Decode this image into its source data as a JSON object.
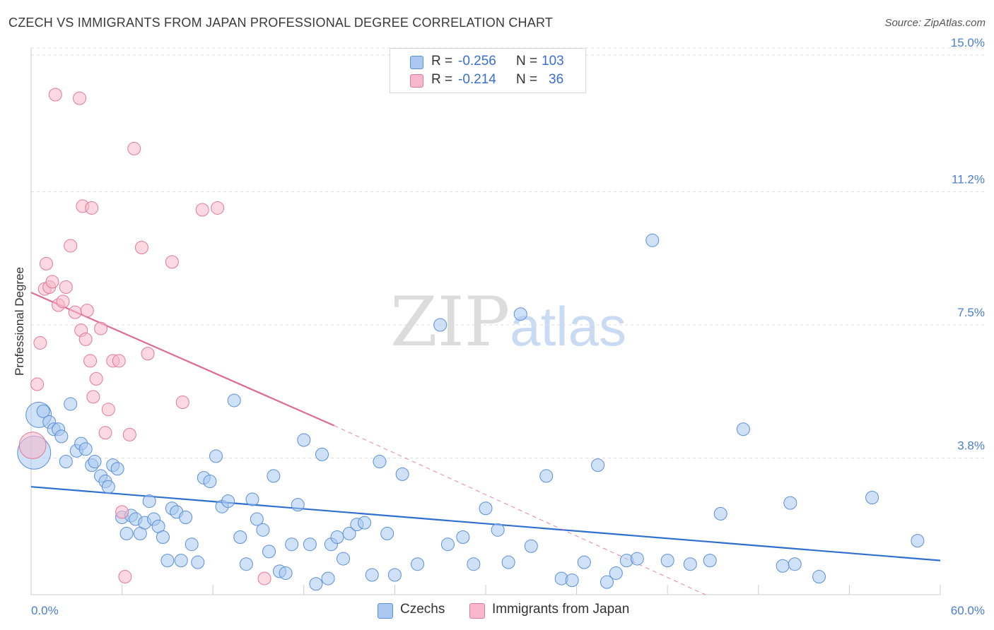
{
  "header": {
    "title": "CZECH VS IMMIGRANTS FROM JAPAN PROFESSIONAL DEGREE CORRELATION CHART",
    "source": "Source: ZipAtlas.com"
  },
  "watermark": {
    "zip": "ZIP",
    "atlas": "atlas"
  },
  "legend": {
    "series1": {
      "r_label": "R = ",
      "r_value": "-0.256",
      "n_label": "N = ",
      "n_value": "103",
      "color": "#a8c8f0"
    },
    "series2": {
      "r_label": "R = ",
      "r_value": "-0.214",
      "n_label": "N = ",
      "n_value": "36",
      "color": "#f7b8cb"
    }
  },
  "bottom_legend": {
    "czechs": "Czechs",
    "japan": "Immigrants from Japan"
  },
  "chart_data": {
    "type": "scatter",
    "title": "CZECH VS IMMIGRANTS FROM JAPAN PROFESSIONAL DEGREE CORRELATION CHART",
    "xlabel": "",
    "ylabel": "Professional Degree",
    "xlim": [
      0,
      60
    ],
    "ylim": [
      0,
      15
    ],
    "x_tick_labels": [
      "0.0%",
      "60.0%"
    ],
    "y_ticks": [
      {
        "value": 3.8,
        "label": "3.8%"
      },
      {
        "value": 7.5,
        "label": "7.5%"
      },
      {
        "value": 11.2,
        "label": "11.2%"
      },
      {
        "value": 15.0,
        "label": "15.0%"
      }
    ],
    "grid": true,
    "series": [
      {
        "name": "Czechs",
        "color": "#a8c8f0",
        "stroke": "#5b8fd6",
        "line_color": "#2f6fd0",
        "trend": {
          "x0": 0,
          "y0": 3.0,
          "x1": 60,
          "y1": 0.95
        },
        "points": [
          [
            0.2,
            3.95,
            2.6
          ],
          [
            0.5,
            5.0,
            2
          ],
          [
            0.8,
            5.1,
            1
          ],
          [
            1.2,
            4.8,
            1
          ],
          [
            1.5,
            4.6,
            1
          ],
          [
            1.8,
            4.6,
            1
          ],
          [
            2.0,
            4.4,
            1
          ],
          [
            2.3,
            3.7,
            1
          ],
          [
            2.6,
            5.3,
            1
          ],
          [
            3.0,
            4.0,
            1
          ],
          [
            3.3,
            4.2,
            1
          ],
          [
            3.6,
            4.05,
            1
          ],
          [
            4.0,
            3.6,
            1
          ],
          [
            4.2,
            3.7,
            1
          ],
          [
            4.6,
            3.3,
            1
          ],
          [
            4.9,
            3.15,
            1
          ],
          [
            5.1,
            3.0,
            1
          ],
          [
            5.4,
            3.6,
            1
          ],
          [
            5.7,
            3.5,
            1
          ],
          [
            6.0,
            2.15,
            1
          ],
          [
            6.3,
            1.7,
            1
          ],
          [
            6.6,
            2.2,
            1
          ],
          [
            6.9,
            2.1,
            1
          ],
          [
            7.2,
            1.7,
            1
          ],
          [
            7.5,
            2.0,
            1
          ],
          [
            7.8,
            2.6,
            1
          ],
          [
            8.1,
            2.1,
            1
          ],
          [
            8.4,
            1.9,
            1
          ],
          [
            8.7,
            1.6,
            1
          ],
          [
            9.0,
            0.95,
            1
          ],
          [
            9.3,
            2.4,
            1
          ],
          [
            9.6,
            2.3,
            1
          ],
          [
            9.9,
            0.95,
            1
          ],
          [
            10.2,
            2.15,
            1
          ],
          [
            10.6,
            1.4,
            1
          ],
          [
            11.0,
            0.9,
            1
          ],
          [
            11.4,
            3.25,
            1
          ],
          [
            11.8,
            3.15,
            1
          ],
          [
            12.2,
            3.85,
            1
          ],
          [
            12.6,
            2.45,
            1
          ],
          [
            13.0,
            2.6,
            1
          ],
          [
            13.4,
            5.4,
            1
          ],
          [
            13.8,
            1.6,
            1
          ],
          [
            14.2,
            0.85,
            1
          ],
          [
            14.6,
            2.65,
            1
          ],
          [
            14.9,
            2.1,
            1
          ],
          [
            15.3,
            1.8,
            1
          ],
          [
            15.7,
            1.2,
            1
          ],
          [
            16.0,
            3.3,
            1
          ],
          [
            16.4,
            0.65,
            1
          ],
          [
            16.8,
            0.6,
            1
          ],
          [
            17.2,
            1.4,
            1
          ],
          [
            17.6,
            2.5,
            1
          ],
          [
            18.0,
            4.3,
            1
          ],
          [
            18.4,
            1.4,
            1
          ],
          [
            18.8,
            0.3,
            1
          ],
          [
            19.2,
            3.9,
            1
          ],
          [
            19.6,
            0.45,
            1
          ],
          [
            19.8,
            1.4,
            1
          ],
          [
            20.2,
            1.6,
            1
          ],
          [
            20.6,
            1.0,
            1
          ],
          [
            21.0,
            1.7,
            1
          ],
          [
            21.5,
            1.95,
            1
          ],
          [
            22.0,
            2.0,
            1
          ],
          [
            22.5,
            0.55,
            1
          ],
          [
            23.0,
            3.7,
            1
          ],
          [
            23.5,
            1.7,
            1
          ],
          [
            24.0,
            0.55,
            1
          ],
          [
            24.5,
            3.35,
            1
          ],
          [
            25.5,
            0.85,
            1
          ],
          [
            27.0,
            7.5,
            1
          ],
          [
            27.5,
            1.4,
            1
          ],
          [
            28.5,
            1.6,
            1
          ],
          [
            29.2,
            0.85,
            1
          ],
          [
            30.0,
            2.4,
            1
          ],
          [
            30.8,
            1.8,
            1
          ],
          [
            31.5,
            0.9,
            1
          ],
          [
            32.3,
            7.8,
            1
          ],
          [
            33.0,
            1.35,
            1
          ],
          [
            34.0,
            3.3,
            1
          ],
          [
            35.0,
            0.45,
            1
          ],
          [
            35.7,
            0.4,
            1
          ],
          [
            36.5,
            0.9,
            1
          ],
          [
            37.4,
            3.6,
            1
          ],
          [
            38.0,
            0.35,
            1
          ],
          [
            38.6,
            0.6,
            1
          ],
          [
            39.3,
            0.95,
            1
          ],
          [
            40.0,
            1.0,
            1
          ],
          [
            41.0,
            9.85,
            1
          ],
          [
            42.0,
            0.95,
            1
          ],
          [
            43.5,
            0.85,
            1
          ],
          [
            44.8,
            0.95,
            1
          ],
          [
            45.5,
            2.25,
            1
          ],
          [
            47.0,
            4.6,
            1
          ],
          [
            49.6,
            0.8,
            1
          ],
          [
            50.1,
            2.55,
            1
          ],
          [
            50.4,
            0.85,
            1
          ],
          [
            52.0,
            0.5,
            1
          ],
          [
            55.5,
            2.7,
            1
          ],
          [
            58.5,
            1.5,
            1
          ]
        ]
      },
      {
        "name": "Immigrants from Japan",
        "color": "#f7b8cb",
        "stroke": "#e07a9a",
        "line_color": "#e06a93",
        "trend": {
          "x0": 0,
          "y0": 8.4,
          "x1": 20,
          "y1": 4.7
        },
        "trend_ext": {
          "x0": 20,
          "y0": 4.7,
          "x1": 44.5,
          "y1": 0.0
        },
        "points": [
          [
            0.1,
            4.15,
            2.1
          ],
          [
            0.4,
            5.85,
            1
          ],
          [
            0.6,
            7.0,
            1
          ],
          [
            0.9,
            8.5,
            1
          ],
          [
            1.0,
            9.2,
            1
          ],
          [
            1.2,
            8.55,
            1
          ],
          [
            1.4,
            8.7,
            1
          ],
          [
            1.6,
            13.9,
            1
          ],
          [
            1.8,
            8.05,
            1
          ],
          [
            2.1,
            8.15,
            1
          ],
          [
            2.3,
            8.55,
            1
          ],
          [
            2.6,
            9.7,
            1
          ],
          [
            2.9,
            7.85,
            1
          ],
          [
            3.2,
            13.8,
            1
          ],
          [
            3.3,
            7.35,
            1
          ],
          [
            3.4,
            10.8,
            1
          ],
          [
            3.6,
            7.1,
            1
          ],
          [
            3.7,
            7.9,
            1
          ],
          [
            3.9,
            6.5,
            1
          ],
          [
            4.0,
            10.75,
            1
          ],
          [
            4.1,
            5.5,
            1
          ],
          [
            4.3,
            6.0,
            1
          ],
          [
            4.6,
            7.4,
            1
          ],
          [
            4.9,
            4.5,
            1
          ],
          [
            5.1,
            5.15,
            1
          ],
          [
            5.4,
            6.5,
            1
          ],
          [
            5.8,
            6.5,
            1
          ],
          [
            6.0,
            2.3,
            1
          ],
          [
            6.2,
            0.5,
            1
          ],
          [
            6.5,
            4.45,
            1
          ],
          [
            6.8,
            12.4,
            1
          ],
          [
            7.3,
            9.65,
            1
          ],
          [
            7.7,
            6.7,
            1
          ],
          [
            9.3,
            9.25,
            1
          ],
          [
            10.0,
            5.35,
            1
          ],
          [
            11.3,
            10.7,
            1
          ],
          [
            12.3,
            10.75,
            1
          ],
          [
            15.4,
            0.45,
            1
          ]
        ]
      }
    ]
  }
}
